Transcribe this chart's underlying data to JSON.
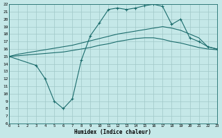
{
  "xlabel": "Humidex (Indice chaleur)",
  "background_color": "#c5e8e8",
  "grid_color": "#a0c8c8",
  "line_color": "#1a6b6b",
  "xlim": [
    0,
    23
  ],
  "ylim": [
    6,
    22
  ],
  "xticks": [
    0,
    1,
    2,
    3,
    4,
    5,
    6,
    7,
    8,
    9,
    10,
    11,
    12,
    13,
    14,
    15,
    16,
    17,
    18,
    19,
    20,
    21,
    22,
    23
  ],
  "yticks": [
    6,
    7,
    8,
    9,
    10,
    11,
    12,
    13,
    14,
    15,
    16,
    17,
    18,
    19,
    20,
    21,
    22
  ],
  "line1_x": [
    0,
    1,
    2,
    3,
    4,
    5,
    6,
    7,
    8,
    9,
    10,
    11,
    12,
    13,
    14,
    15,
    16,
    17,
    18,
    19,
    20,
    21,
    22,
    23
  ],
  "line1_y": [
    15.0,
    15.3,
    15.5,
    15.7,
    15.9,
    16.1,
    16.3,
    16.5,
    16.8,
    17.1,
    17.4,
    17.7,
    18.0,
    18.2,
    18.4,
    18.6,
    18.8,
    19.0,
    18.8,
    18.5,
    18.0,
    17.5,
    16.3,
    16.0
  ],
  "line2_x": [
    0,
    1,
    2,
    3,
    4,
    5,
    6,
    7,
    8,
    9,
    10,
    11,
    12,
    13,
    14,
    15,
    16,
    17,
    18,
    19,
    20,
    21,
    22,
    23
  ],
  "line2_y": [
    15.0,
    15.1,
    15.2,
    15.3,
    15.4,
    15.5,
    15.6,
    15.8,
    16.0,
    16.2,
    16.5,
    16.7,
    17.0,
    17.2,
    17.4,
    17.5,
    17.5,
    17.3,
    17.0,
    16.8,
    16.5,
    16.2,
    16.0,
    15.9
  ],
  "line3_x": [
    0,
    3,
    4,
    5,
    6,
    7,
    8,
    9,
    10,
    11,
    12,
    13,
    14,
    15,
    16,
    17,
    18,
    19,
    20,
    21,
    22,
    23
  ],
  "line3_y": [
    15.0,
    13.8,
    12.0,
    9.0,
    8.0,
    9.3,
    14.5,
    17.8,
    19.5,
    21.3,
    21.5,
    21.3,
    21.5,
    21.8,
    22.0,
    21.7,
    19.3,
    20.0,
    17.5,
    17.0,
    16.3,
    16.0
  ]
}
